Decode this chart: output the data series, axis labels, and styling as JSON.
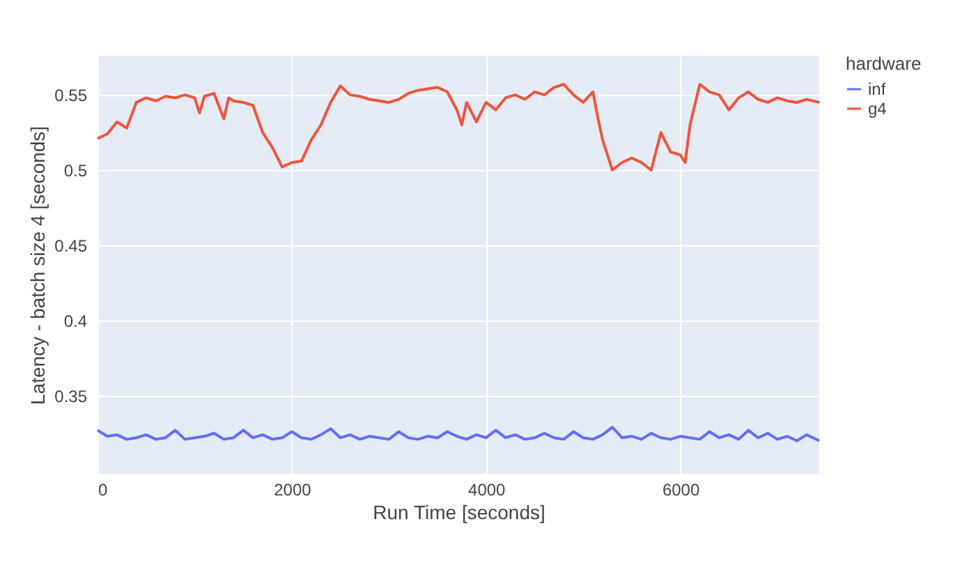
{
  "chart_data": {
    "type": "line",
    "xlabel": "Run Time [seconds]",
    "ylabel": "Latency - batch size 4 [seconds]",
    "legend_title": "hardware",
    "legend": "top right",
    "grid": true,
    "marker": "none",
    "line_style": "solid",
    "xlim": [
      0,
      7430
    ],
    "xticks": [
      0,
      2000,
      4000,
      6000
    ],
    "ylim": [
      0.298,
      0.576
    ],
    "yticks": [
      0.35,
      0.4,
      0.45,
      0.5,
      0.55
    ],
    "series": [
      {
        "name": "inf",
        "color": "#636efa",
        "x": [
          0,
          100,
          200,
          300,
          400,
          500,
          600,
          700,
          800,
          900,
          1000,
          1100,
          1200,
          1300,
          1400,
          1500,
          1600,
          1700,
          1800,
          1900,
          2000,
          2100,
          2200,
          2300,
          2400,
          2500,
          2600,
          2700,
          2800,
          2900,
          3000,
          3100,
          3200,
          3300,
          3400,
          3500,
          3600,
          3700,
          3800,
          3900,
          4000,
          4100,
          4200,
          4300,
          4400,
          4500,
          4600,
          4700,
          4800,
          4900,
          5000,
          5100,
          5200,
          5300,
          5400,
          5500,
          5600,
          5700,
          5800,
          5900,
          6000,
          6100,
          6200,
          6300,
          6400,
          6500,
          6600,
          6700,
          6800,
          6900,
          7000,
          7100,
          7200,
          7300,
          7430
        ],
        "values": [
          0.327,
          0.323,
          0.324,
          0.321,
          0.322,
          0.324,
          0.321,
          0.322,
          0.327,
          0.321,
          0.322,
          0.323,
          0.325,
          0.321,
          0.322,
          0.327,
          0.322,
          0.324,
          0.321,
          0.322,
          0.326,
          0.322,
          0.321,
          0.324,
          0.328,
          0.322,
          0.324,
          0.321,
          0.323,
          0.322,
          0.321,
          0.326,
          0.322,
          0.321,
          0.323,
          0.322,
          0.326,
          0.323,
          0.321,
          0.324,
          0.322,
          0.327,
          0.322,
          0.324,
          0.321,
          0.322,
          0.325,
          0.322,
          0.321,
          0.326,
          0.322,
          0.321,
          0.324,
          0.329,
          0.322,
          0.323,
          0.321,
          0.325,
          0.322,
          0.321,
          0.323,
          0.322,
          0.321,
          0.326,
          0.322,
          0.324,
          0.321,
          0.327,
          0.322,
          0.325,
          0.321,
          0.323,
          0.32,
          0.324,
          0.32
        ]
      },
      {
        "name": "g4",
        "color": "#ef553b",
        "x": [
          0,
          100,
          200,
          300,
          400,
          500,
          600,
          700,
          800,
          900,
          1000,
          1050,
          1100,
          1200,
          1300,
          1350,
          1400,
          1500,
          1600,
          1700,
          1800,
          1900,
          2000,
          2100,
          2200,
          2300,
          2400,
          2500,
          2600,
          2700,
          2800,
          2900,
          3000,
          3100,
          3200,
          3300,
          3400,
          3500,
          3600,
          3700,
          3750,
          3800,
          3900,
          4000,
          4100,
          4200,
          4300,
          4400,
          4500,
          4600,
          4700,
          4800,
          4900,
          5000,
          5100,
          5150,
          5200,
          5300,
          5400,
          5500,
          5600,
          5700,
          5800,
          5900,
          6000,
          6050,
          6100,
          6200,
          6300,
          6400,
          6500,
          6600,
          6700,
          6800,
          6900,
          7000,
          7100,
          7200,
          7300,
          7430
        ],
        "values": [
          0.521,
          0.524,
          0.532,
          0.528,
          0.545,
          0.548,
          0.546,
          0.549,
          0.548,
          0.55,
          0.548,
          0.538,
          0.549,
          0.551,
          0.534,
          0.548,
          0.546,
          0.545,
          0.543,
          0.525,
          0.515,
          0.502,
          0.505,
          0.506,
          0.52,
          0.53,
          0.545,
          0.556,
          0.55,
          0.549,
          0.547,
          0.546,
          0.545,
          0.547,
          0.551,
          0.553,
          0.554,
          0.555,
          0.552,
          0.54,
          0.53,
          0.545,
          0.532,
          0.545,
          0.54,
          0.548,
          0.55,
          0.547,
          0.552,
          0.55,
          0.555,
          0.557,
          0.55,
          0.545,
          0.552,
          0.535,
          0.52,
          0.5,
          0.505,
          0.508,
          0.505,
          0.5,
          0.525,
          0.512,
          0.51,
          0.505,
          0.53,
          0.557,
          0.552,
          0.55,
          0.54,
          0.548,
          0.552,
          0.547,
          0.545,
          0.548,
          0.546,
          0.545,
          0.547,
          0.545
        ]
      }
    ]
  }
}
